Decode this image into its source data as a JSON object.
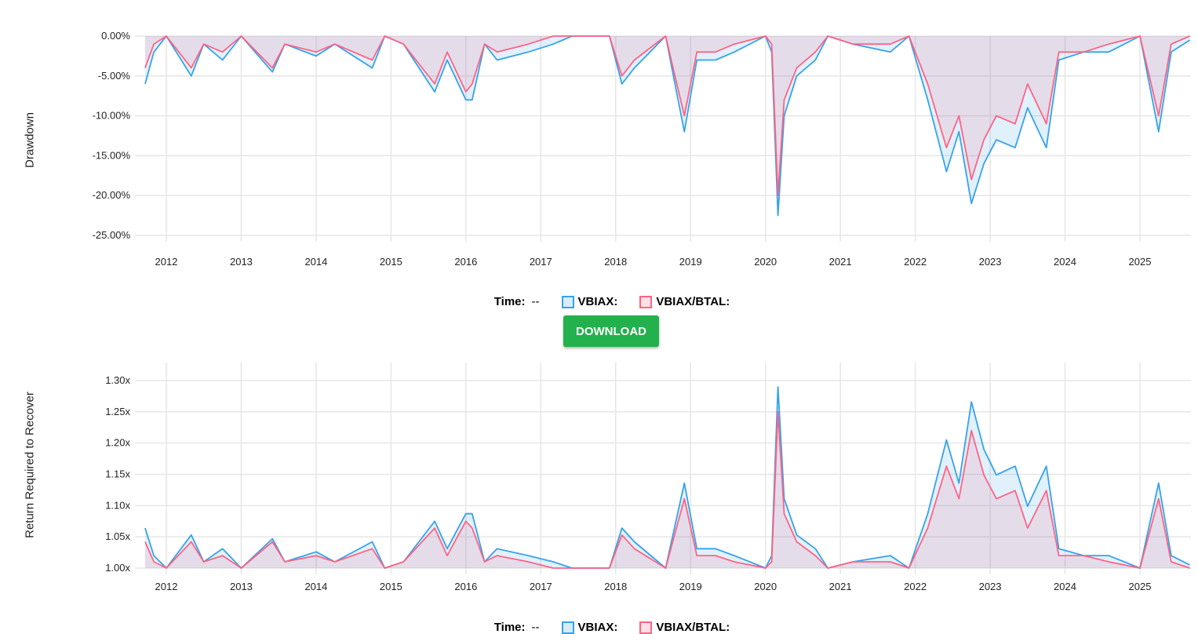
{
  "legend": {
    "time_label": "Time:",
    "time_value": "--"
  },
  "download_label": "DOWNLOAD",
  "colors": {
    "vbiax": "#36a2eb",
    "vbiax_btal": "#ff6384",
    "download": "#22b14c"
  },
  "chart_data": [
    {
      "type": "area",
      "ylabel": "Drawdown",
      "ylim": [
        -25,
        0
      ],
      "yticks": [
        "0.00%",
        "-5.00%",
        "-10.00%",
        "-15.00%",
        "-20.00%",
        "-25.00%"
      ],
      "ytick_values": [
        0,
        -5,
        -10,
        -15,
        -20,
        -25
      ],
      "xticks": [
        "2012",
        "2013",
        "2014",
        "2015",
        "2016",
        "2017",
        "2018",
        "2019",
        "2020",
        "2021",
        "2022",
        "2023",
        "2024",
        "2025"
      ],
      "xlim": [
        "2011-09",
        "2025-09"
      ],
      "grid": true,
      "x": [
        "2011-09",
        "2011-11",
        "2012-01",
        "2012-05",
        "2012-07",
        "2012-10",
        "2013-01",
        "2013-06",
        "2013-08",
        "2014-01",
        "2014-04",
        "2014-10",
        "2014-12",
        "2015-03",
        "2015-08",
        "2015-10",
        "2016-01",
        "2016-02",
        "2016-04",
        "2016-06",
        "2016-11",
        "2017-03",
        "2017-06",
        "2017-12",
        "2018-02",
        "2018-04",
        "2018-09",
        "2018-12",
        "2019-02",
        "2019-05",
        "2019-08",
        "2020-01",
        "2020-02",
        "2020-03",
        "2020-04",
        "2020-06",
        "2020-09",
        "2020-11",
        "2021-03",
        "2021-09",
        "2021-12",
        "2022-03",
        "2022-06",
        "2022-08",
        "2022-10",
        "2022-12",
        "2023-02",
        "2023-05",
        "2023-07",
        "2023-10",
        "2023-12",
        "2024-04",
        "2024-08",
        "2025-01",
        "2025-04",
        "2025-06",
        "2025-09"
      ],
      "series": [
        {
          "name": "VBIAX:",
          "values": [
            -6,
            -2,
            0,
            -5,
            -1,
            -3,
            0,
            -4.5,
            -1,
            -2.5,
            -1,
            -4,
            0,
            -1,
            -7,
            -3,
            -8,
            -8,
            -1,
            -3,
            -2,
            -1,
            0,
            0,
            -6,
            -4,
            0,
            -12,
            -3,
            -3,
            -2,
            0,
            -2,
            -22.5,
            -10,
            -5,
            -3,
            0,
            -1,
            -2,
            0,
            -8,
            -17,
            -12,
            -21,
            -16,
            -13,
            -14,
            -9,
            -14,
            -3,
            -2,
            -2,
            0,
            -12,
            -2,
            -0.5
          ]
        },
        {
          "name": "VBIAX/BTAL:",
          "values": [
            -4,
            -1,
            0,
            -4,
            -1,
            -2,
            0,
            -4,
            -1,
            -2,
            -1,
            -3,
            0,
            -1,
            -6,
            -2,
            -7,
            -6,
            -1,
            -2,
            -1,
            0,
            0,
            0,
            -5,
            -3,
            0,
            -10,
            -2,
            -2,
            -1,
            0,
            -1,
            -20,
            -8,
            -4,
            -2,
            0,
            -1,
            -1,
            0,
            -6,
            -14,
            -10,
            -18,
            -13,
            -10,
            -11,
            -6,
            -11,
            -2,
            -2,
            -1,
            0,
            -10,
            -1,
            0
          ]
        }
      ]
    },
    {
      "type": "area",
      "ylabel": "Return Required to Recover",
      "ylim": [
        1.0,
        1.3
      ],
      "yticks": [
        "1.30x",
        "1.25x",
        "1.20x",
        "1.15x",
        "1.10x",
        "1.05x",
        "1.00x"
      ],
      "ytick_values": [
        1.3,
        1.25,
        1.2,
        1.15,
        1.1,
        1.05,
        1.0
      ],
      "xticks": [
        "2012",
        "2013",
        "2014",
        "2015",
        "2016",
        "2017",
        "2018",
        "2019",
        "2020",
        "2021",
        "2022",
        "2023",
        "2024",
        "2025"
      ],
      "xlim": [
        "2011-09",
        "2025-09"
      ],
      "grid": true,
      "x": [
        "2011-09",
        "2011-11",
        "2012-01",
        "2012-05",
        "2012-07",
        "2012-10",
        "2013-01",
        "2013-06",
        "2013-08",
        "2014-01",
        "2014-04",
        "2014-10",
        "2014-12",
        "2015-03",
        "2015-08",
        "2015-10",
        "2016-01",
        "2016-02",
        "2016-04",
        "2016-06",
        "2016-11",
        "2017-03",
        "2017-06",
        "2017-12",
        "2018-02",
        "2018-04",
        "2018-09",
        "2018-12",
        "2019-02",
        "2019-05",
        "2019-08",
        "2020-01",
        "2020-02",
        "2020-03",
        "2020-04",
        "2020-06",
        "2020-09",
        "2020-11",
        "2021-03",
        "2021-09",
        "2021-12",
        "2022-03",
        "2022-06",
        "2022-08",
        "2022-10",
        "2022-12",
        "2023-02",
        "2023-05",
        "2023-07",
        "2023-10",
        "2023-12",
        "2024-04",
        "2024-08",
        "2025-01",
        "2025-04",
        "2025-06",
        "2025-09"
      ],
      "series": [
        {
          "name": "VBIAX:",
          "values": [
            1.064,
            1.02,
            1,
            1.053,
            1.01,
            1.031,
            1,
            1.047,
            1.01,
            1.026,
            1.01,
            1.042,
            1,
            1.01,
            1.075,
            1.031,
            1.087,
            1.087,
            1.01,
            1.031,
            1.02,
            1.01,
            1,
            1,
            1.064,
            1.042,
            1,
            1.136,
            1.031,
            1.031,
            1.02,
            1,
            1.02,
            1.29,
            1.111,
            1.053,
            1.031,
            1,
            1.01,
            1.02,
            1,
            1.087,
            1.205,
            1.136,
            1.266,
            1.19,
            1.149,
            1.163,
            1.099,
            1.163,
            1.031,
            1.02,
            1.02,
            1,
            1.136,
            1.02,
            1.005
          ]
        },
        {
          "name": "VBIAX/BTAL:",
          "values": [
            1.042,
            1.01,
            1,
            1.042,
            1.01,
            1.02,
            1,
            1.042,
            1.01,
            1.02,
            1.01,
            1.031,
            1,
            1.01,
            1.064,
            1.02,
            1.075,
            1.064,
            1.01,
            1.02,
            1.01,
            1,
            1,
            1,
            1.053,
            1.031,
            1,
            1.111,
            1.02,
            1.02,
            1.01,
            1,
            1.01,
            1.25,
            1.087,
            1.042,
            1.02,
            1,
            1.01,
            1.01,
            1,
            1.064,
            1.163,
            1.111,
            1.22,
            1.149,
            1.111,
            1.124,
            1.064,
            1.124,
            1.02,
            1.02,
            1.01,
            1,
            1.111,
            1.01,
            1
          ]
        }
      ]
    }
  ]
}
